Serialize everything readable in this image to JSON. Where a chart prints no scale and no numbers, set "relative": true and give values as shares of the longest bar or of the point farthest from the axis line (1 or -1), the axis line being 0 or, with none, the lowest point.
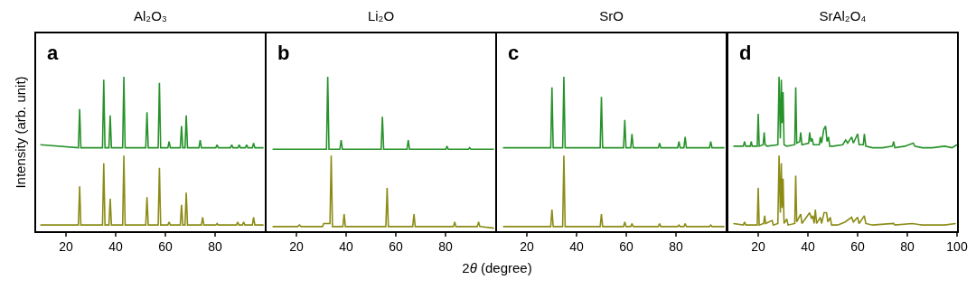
{
  "chart_data": [
    {
      "type": "line",
      "title": "Al₂O₃",
      "ylabel": "Intensity (arb. unit)",
      "annotations": [
        "a"
      ],
      "relative": true,
      "grid": false,
      "xlim": [
        8,
        100
      ],
      "xticks": [
        20,
        40,
        60,
        80
      ],
      "series": [
        {
          "color": "#27922a",
          "x": [
            9.7,
            25.0,
            25.5,
            26.0,
            34.7,
            35.2,
            35.7,
            37.3,
            37.8,
            38.3,
            42.8,
            43.3,
            43.8,
            52.1,
            52.6,
            53.1,
            57.1,
            57.6,
            58.1,
            61.0,
            61.5,
            62.0,
            66.0,
            66.5,
            67.0,
            67.9,
            68.4,
            68.9,
            73.5,
            74.0,
            74.5,
            80.3,
            80.8,
            81.3,
            86.2,
            86.7,
            87.2,
            89.2,
            89.7,
            90.2,
            92.2,
            92.7,
            93.2,
            95.0,
            95.5,
            96.0,
            99.5
          ],
          "values": [
            0.56,
            0.54,
            0.79,
            0.54,
            0.54,
            0.98,
            0.54,
            0.54,
            0.75,
            0.54,
            0.54,
            1,
            0.54,
            0.54,
            0.77,
            0.54,
            0.54,
            0.96,
            0.54,
            0.54,
            0.58,
            0.54,
            0.54,
            0.68,
            0.54,
            0.54,
            0.75,
            0.54,
            0.54,
            0.59,
            0.54,
            0.54,
            0.56,
            0.54,
            0.54,
            0.56,
            0.54,
            0.54,
            0.56,
            0.54,
            0.54,
            0.56,
            0.54,
            0.54,
            0.57,
            0.54,
            0.54
          ]
        },
        {
          "color": "#8b8b16",
          "x": [
            9.7,
            25.0,
            25.5,
            26.0,
            34.7,
            35.2,
            35.7,
            37.3,
            37.8,
            38.3,
            42.8,
            43.3,
            43.8,
            52.1,
            52.6,
            53.1,
            57.1,
            57.6,
            58.1,
            61.0,
            61.5,
            62.0,
            66.0,
            66.5,
            67.0,
            67.9,
            68.4,
            68.9,
            74.5,
            75.0,
            75.5,
            80.3,
            80.8,
            81.3,
            88.6,
            89.1,
            89.6,
            91.0,
            91.5,
            92.0,
            95.0,
            95.5,
            96.0,
            99.5
          ],
          "values": [
            0.04,
            0.04,
            0.29,
            0.04,
            0.04,
            0.44,
            0.04,
            0.04,
            0.21,
            0.04,
            0.04,
            0.49,
            0.04,
            0.04,
            0.22,
            0.04,
            0.04,
            0.41,
            0.04,
            0.04,
            0.06,
            0.04,
            0.04,
            0.17,
            0.04,
            0.04,
            0.25,
            0.04,
            0.04,
            0.09,
            0.04,
            0.04,
            0.05,
            0.04,
            0.04,
            0.06,
            0.04,
            0.04,
            0.06,
            0.04,
            0.04,
            0.09,
            0.04,
            0.04
          ]
        }
      ]
    },
    {
      "type": "line",
      "title": "Li₂O",
      "xlabel": "2θ (degree)",
      "annotations": [
        "b"
      ],
      "relative": true,
      "grid": false,
      "xlim": [
        8,
        100
      ],
      "xticks": [
        20,
        40,
        60,
        80
      ],
      "series": [
        {
          "color": "#27922a",
          "x": [
            10.4,
            32.1,
            32.6,
            33.1,
            37.5,
            38.0,
            38.5,
            54.1,
            54.6,
            55.1,
            64.5,
            65.0,
            65.5,
            80.1,
            80.6,
            81.1,
            89.2,
            89.7,
            90.2,
            99.5
          ],
          "values": [
            0.53,
            0.53,
            1,
            0.53,
            0.53,
            0.59,
            0.53,
            0.53,
            0.74,
            0.53,
            0.53,
            0.59,
            0.53,
            0.53,
            0.55,
            0.53,
            0.53,
            0.54,
            0.53,
            0.53
          ]
        },
        {
          "color": "#8b8b16",
          "x": [
            10.4,
            20.5,
            21.2,
            21.9,
            30.5,
            31.0,
            33.5,
            34.0,
            34.5,
            38.7,
            39.2,
            39.7,
            56.0,
            56.5,
            57.0,
            66.8,
            67.3,
            67.8,
            83.2,
            83.7,
            84.2,
            92.8,
            93.3,
            93.8,
            99.5
          ],
          "values": [
            0.03,
            0.03,
            0.04,
            0.03,
            0.03,
            0.05,
            0.05,
            0.49,
            0.03,
            0.03,
            0.11,
            0.03,
            0.03,
            0.28,
            0.03,
            0.03,
            0.11,
            0.03,
            0.03,
            0.06,
            0.03,
            0.03,
            0.06,
            0.03,
            0.02
          ]
        }
      ]
    },
    {
      "type": "line",
      "title": "SrO",
      "annotations": [
        "c"
      ],
      "relative": true,
      "grid": false,
      "xlim": [
        8,
        100
      ],
      "xticks": [
        20,
        40,
        60,
        80
      ],
      "series": [
        {
          "color": "#27922a",
          "x": [
            10.4,
            29.6,
            30.1,
            30.6,
            34.4,
            34.9,
            35.4,
            49.5,
            50.0,
            50.5,
            58.9,
            59.4,
            59.9,
            61.8,
            62.3,
            62.8,
            72.9,
            73.4,
            73.9,
            80.7,
            81.2,
            81.7,
            83.2,
            83.7,
            84.2,
            93.5,
            94.0,
            94.5,
            99.5
          ],
          "values": [
            0.54,
            0.54,
            0.93,
            0.54,
            0.54,
            1,
            0.54,
            0.54,
            0.87,
            0.54,
            0.54,
            0.72,
            0.54,
            0.54,
            0.63,
            0.54,
            0.54,
            0.57,
            0.54,
            0.54,
            0.58,
            0.54,
            0.54,
            0.61,
            0.54,
            0.54,
            0.58,
            0.54,
            0.54
          ]
        },
        {
          "color": "#8b8b16",
          "x": [
            10.4,
            29.6,
            30.1,
            30.6,
            34.4,
            34.9,
            35.4,
            49.5,
            50.0,
            50.5,
            58.9,
            59.4,
            59.9,
            61.8,
            62.3,
            62.8,
            72.9,
            73.4,
            73.9,
            80.7,
            81.2,
            81.7,
            83.2,
            83.7,
            84.2,
            93.5,
            94.0,
            94.5,
            99.5
          ],
          "values": [
            0.03,
            0.03,
            0.14,
            0.03,
            0.03,
            0.49,
            0.03,
            0.03,
            0.11,
            0.03,
            0.03,
            0.06,
            0.03,
            0.03,
            0.05,
            0.03,
            0.03,
            0.05,
            0.03,
            0.03,
            0.04,
            0.03,
            0.03,
            0.05,
            0.03,
            0.03,
            0.04,
            0.03,
            0.03
          ]
        }
      ]
    },
    {
      "type": "line",
      "title": "SrAl₂O₄",
      "annotations": [
        "d"
      ],
      "relative": true,
      "grid": false,
      "xlim": [
        8,
        100
      ],
      "xticks": [
        20,
        40,
        60,
        80,
        100
      ],
      "series": [
        {
          "color": "#27922a",
          "x": [
            10.0,
            14.0,
            14.5,
            15.0,
            16.8,
            17.2,
            17.6,
            19.6,
            20.0,
            20.4,
            22.0,
            22.4,
            22.8,
            23.5,
            27.9,
            28.4,
            28.9,
            29.3,
            29.6,
            30.0,
            30.4,
            31.5,
            34.7,
            35.1,
            35.5,
            36.7,
            37.1,
            37.6,
            40.3,
            40.7,
            41.2,
            41.7,
            42.2,
            44.6,
            45.0,
            45.5,
            46.4,
            47.1,
            47.7,
            48.3,
            48.8,
            50.0,
            54.0,
            55.2,
            56.0,
            57.6,
            58.3,
            60.0,
            60.6,
            62.3,
            62.7,
            63.3,
            66,
            70,
            74.0,
            74.5,
            75.0,
            79,
            82.4,
            83.0,
            86,
            90,
            95,
            98,
            100
          ],
          "values": [
            0.55,
            0.55,
            0.58,
            0.55,
            0.55,
            0.58,
            0.55,
            0.55,
            0.76,
            0.55,
            0.56,
            0.64,
            0.56,
            0.55,
            0.56,
            1,
            0.6,
            0.98,
            0.7,
            0.9,
            0.56,
            0.55,
            0.56,
            0.93,
            0.57,
            0.58,
            0.64,
            0.56,
            0.57,
            0.64,
            0.58,
            0.6,
            0.56,
            0.56,
            0.61,
            0.57,
            0.66,
            0.68,
            0.58,
            0.61,
            0.55,
            0.55,
            0.56,
            0.59,
            0.57,
            0.61,
            0.57,
            0.63,
            0.56,
            0.56,
            0.63,
            0.55,
            0.54,
            0.54,
            0.55,
            0.58,
            0.54,
            0.55,
            0.57,
            0.55,
            0.54,
            0.54,
            0.55,
            0.54,
            0.56
          ]
        },
        {
          "color": "#8b8b16",
          "x": [
            10.0,
            14.0,
            14.5,
            15.0,
            19.6,
            20.0,
            20.4,
            22.2,
            22.6,
            23.0,
            25.6,
            26.1,
            27.9,
            28.4,
            28.9,
            29.3,
            29.6,
            30.0,
            30.4,
            31.5,
            32.0,
            34.7,
            35.1,
            35.5,
            37.1,
            37.6,
            40.7,
            41.5,
            42.0,
            42.5,
            43.0,
            43.5,
            45.0,
            45.5,
            46.5,
            47.5,
            48.0,
            49.0,
            49.5,
            52,
            55,
            57.6,
            58.3,
            60.0,
            60.6,
            62.7,
            63.3,
            66,
            74.5,
            75,
            82,
            86,
            95,
            99.5
          ],
          "values": [
            0.05,
            0.04,
            0.06,
            0.04,
            0.04,
            0.28,
            0.04,
            0.05,
            0.1,
            0.05,
            0.07,
            0.04,
            0.05,
            0.49,
            0.12,
            0.44,
            0.15,
            0.34,
            0.05,
            0.08,
            0.04,
            0.05,
            0.36,
            0.06,
            0.11,
            0.05,
            0.12,
            0.08,
            0.1,
            0.05,
            0.14,
            0.05,
            0.09,
            0.05,
            0.12,
            0.12,
            0.06,
            0.09,
            0.04,
            0.04,
            0.06,
            0.09,
            0.06,
            0.09,
            0.05,
            0.1,
            0.05,
            0.04,
            0.05,
            0.04,
            0.05,
            0.04,
            0.04,
            0.05
          ]
        }
      ]
    }
  ]
}
